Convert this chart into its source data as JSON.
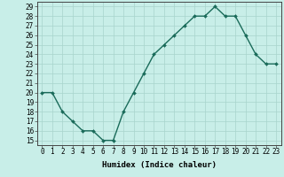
{
  "x": [
    0,
    1,
    2,
    3,
    4,
    5,
    6,
    7,
    8,
    9,
    10,
    11,
    12,
    13,
    14,
    15,
    16,
    17,
    18,
    19,
    20,
    21,
    22,
    23
  ],
  "y": [
    20,
    20,
    18,
    17,
    16,
    16,
    15,
    15,
    18,
    20,
    22,
    24,
    25,
    26,
    27,
    28,
    28,
    29,
    28,
    28,
    26,
    24,
    23,
    23
  ],
  "line_color": "#1a6b5a",
  "marker": "D",
  "marker_size": 2.0,
  "bg_color": "#c8eee8",
  "grid_color": "#a8d4cc",
  "xlabel": "Humidex (Indice chaleur)",
  "xlim": [
    -0.5,
    23.5
  ],
  "ylim": [
    14.5,
    29.5
  ],
  "yticks": [
    15,
    16,
    17,
    18,
    19,
    20,
    21,
    22,
    23,
    24,
    25,
    26,
    27,
    28,
    29
  ],
  "xticks": [
    0,
    1,
    2,
    3,
    4,
    5,
    6,
    7,
    8,
    9,
    10,
    11,
    12,
    13,
    14,
    15,
    16,
    17,
    18,
    19,
    20,
    21,
    22,
    23
  ],
  "tick_fontsize": 5.5,
  "label_fontsize": 6.5,
  "line_width": 1.0
}
